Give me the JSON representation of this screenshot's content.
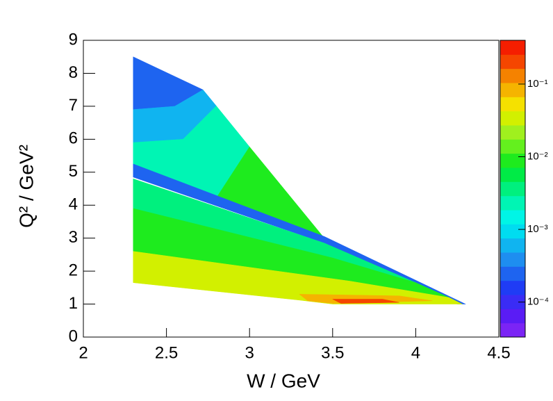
{
  "chart_data": {
    "type": "heatmap",
    "xlabel": "W / GeV",
    "ylabel": "Q² / GeV²",
    "xlim": [
      2,
      4.5
    ],
    "xticks": [
      2,
      2.5,
      3,
      3.5,
      4,
      4.5
    ],
    "ylim": [
      0,
      9
    ],
    "yticks": [
      0,
      1,
      2,
      3,
      4,
      5,
      6,
      7,
      8,
      9
    ],
    "zlog": true,
    "zlim": [
      3.3e-05,
      0.4
    ],
    "zticks": [
      {
        "value": 0.0001,
        "label": "10⁻⁴"
      },
      {
        "value": 0.001,
        "label": "10⁻³"
      },
      {
        "value": 0.01,
        "label": "10⁻²"
      },
      {
        "value": 0.1,
        "label": "10⁻¹"
      }
    ],
    "palette": [
      "#7b24f5",
      "#5a1cf5",
      "#3a2cf5",
      "#1f3cf5",
      "#1e64f0",
      "#1e8ef0",
      "#10b4f0",
      "#00dcf0",
      "#00f5e6",
      "#00f5b4",
      "#00f07e",
      "#00eb46",
      "#1eeb1e",
      "#64f01e",
      "#a0f01e",
      "#d2f000",
      "#f5e100",
      "#f5b400",
      "#f58200",
      "#f54600",
      "#f51e00"
    ],
    "regions": [
      {
        "points": [
          [
            2.3,
            8.5
          ],
          [
            2.72,
            7.5
          ],
          [
            2.55,
            7.0
          ],
          [
            2.3,
            6.9
          ]
        ],
        "value": 0.0002
      },
      {
        "points": [
          [
            2.3,
            6.9
          ],
          [
            2.55,
            7.0
          ],
          [
            2.72,
            7.5
          ],
          [
            2.8,
            7.01
          ],
          [
            2.6,
            6.0
          ],
          [
            2.3,
            5.9
          ]
        ],
        "value": 0.0007
      },
      {
        "points": [
          [
            2.3,
            5.9
          ],
          [
            2.6,
            6.0
          ],
          [
            2.8,
            7.01
          ],
          [
            3.0,
            5.77
          ],
          [
            2.8,
            4.22
          ],
          [
            2.3,
            5.15
          ]
        ],
        "value": 0.002
      },
      {
        "points": [
          [
            2.8,
            4.22
          ],
          [
            3.0,
            5.77
          ],
          [
            3.45,
            3.0
          ]
        ],
        "value": 0.008
      },
      {
        "points": [
          [
            2.3,
            5.25
          ],
          [
            3.45,
            3.05
          ],
          [
            4.3,
            1.0
          ],
          [
            4.25,
            1.0
          ],
          [
            3.45,
            2.85
          ],
          [
            2.3,
            4.85
          ]
        ],
        "value": 0.0003
      },
      {
        "points": [
          [
            2.3,
            4.8
          ],
          [
            3.45,
            2.85
          ],
          [
            4.0,
            1.65
          ],
          [
            3.5,
            2.4
          ],
          [
            2.3,
            3.9
          ]
        ],
        "value": 0.003
      },
      {
        "points": [
          [
            2.3,
            3.9
          ],
          [
            3.5,
            2.4
          ],
          [
            4.0,
            1.65
          ],
          [
            4.2,
            1.2
          ],
          [
            3.6,
            1.7
          ],
          [
            2.3,
            2.6
          ]
        ],
        "value": 0.01
      },
      {
        "points": [
          [
            2.3,
            2.6
          ],
          [
            3.6,
            1.7
          ],
          [
            4.2,
            1.2
          ],
          [
            4.28,
            1.0
          ],
          [
            3.5,
            1.0
          ],
          [
            3.3,
            1.12
          ],
          [
            2.3,
            1.65
          ]
        ],
        "value": 0.03
      },
      {
        "points": [
          [
            3.3,
            1.3
          ],
          [
            3.9,
            1.25
          ],
          [
            4.1,
            1.1
          ],
          [
            3.5,
            1.02
          ],
          [
            3.35,
            1.1
          ]
        ],
        "value": 0.08
      },
      {
        "points": [
          [
            3.5,
            1.15
          ],
          [
            3.8,
            1.15
          ],
          [
            3.9,
            1.05
          ],
          [
            3.55,
            1.02
          ]
        ],
        "value": 0.2
      }
    ]
  }
}
